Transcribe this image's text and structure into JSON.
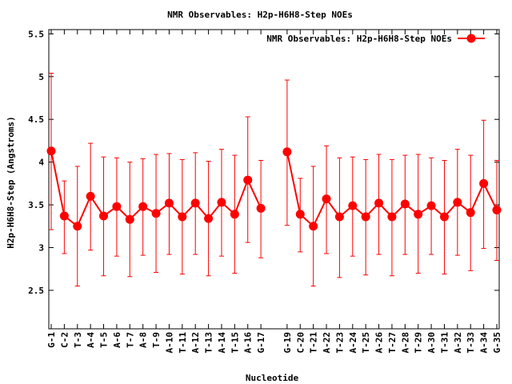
{
  "chart_data": {
    "type": "line",
    "title": "NMR Observables: H2p-H6H8-Step NOEs",
    "xlabel": "Nucleotide",
    "ylabel": "H2p-H6H8-Step (Angstroms)",
    "ylim": [
      2.05,
      5.55
    ],
    "yticks": [
      2.5,
      3,
      3.5,
      4,
      4.5,
      5,
      5.5
    ],
    "ytick_labels": [
      "2.5",
      "3",
      "3.5",
      "4",
      "4.5",
      "5",
      "5.5"
    ],
    "legend_position": "top-right",
    "colors": {
      "series": "#ff0000",
      "axis": "#000000",
      "background": "#ffffff"
    },
    "series": [
      {
        "name": "NMR Observables: H2p-H6H8-Step NOEs",
        "x": [
          1,
          2,
          3,
          4,
          5,
          6,
          7,
          8,
          9,
          10,
          11,
          12,
          13,
          14,
          15,
          16,
          17,
          19,
          20,
          21,
          22,
          23,
          24,
          25,
          26,
          27,
          28,
          29,
          30,
          31,
          32,
          33,
          34,
          35
        ],
        "labels": [
          "G-1",
          "C-2",
          "T-3",
          "A-4",
          "T-5",
          "A-6",
          "T-7",
          "A-8",
          "T-9",
          "A-10",
          "T-11",
          "A-12",
          "T-13",
          "A-14",
          "T-15",
          "A-16",
          "G-17",
          "G-19",
          "C-20",
          "T-21",
          "A-22",
          "T-23",
          "A-24",
          "T-25",
          "A-26",
          "T-27",
          "A-28",
          "T-29",
          "A-30",
          "T-31",
          "A-32",
          "T-33",
          "A-34",
          "G-35"
        ],
        "values": [
          4.13,
          3.37,
          3.25,
          3.6,
          3.37,
          3.48,
          3.33,
          3.48,
          3.4,
          3.52,
          3.36,
          3.52,
          3.34,
          3.53,
          3.39,
          3.79,
          3.46,
          4.12,
          3.39,
          3.25,
          3.57,
          3.36,
          3.49,
          3.36,
          3.52,
          3.36,
          3.51,
          3.39,
          3.49,
          3.36,
          3.53,
          3.41,
          3.75,
          3.44
        ],
        "err_low": [
          3.21,
          2.93,
          2.55,
          2.97,
          2.67,
          2.9,
          2.66,
          2.91,
          2.71,
          2.92,
          2.69,
          2.92,
          2.67,
          2.9,
          2.7,
          3.06,
          2.88,
          3.26,
          2.95,
          2.55,
          2.93,
          2.65,
          2.9,
          2.68,
          2.92,
          2.67,
          2.92,
          2.7,
          2.92,
          2.69,
          2.91,
          2.73,
          2.99,
          2.85
        ],
        "err_high": [
          5.04,
          3.78,
          3.95,
          4.22,
          4.06,
          4.05,
          4.0,
          4.04,
          4.09,
          4.1,
          4.03,
          4.11,
          4.01,
          4.15,
          4.08,
          4.53,
          4.02,
          4.96,
          3.81,
          3.95,
          4.19,
          4.05,
          4.06,
          4.03,
          4.09,
          4.03,
          4.08,
          4.09,
          4.05,
          4.02,
          4.15,
          4.08,
          4.49,
          4.02
        ],
        "segments": [
          [
            0,
            16
          ],
          [
            17,
            33
          ]
        ]
      }
    ]
  }
}
